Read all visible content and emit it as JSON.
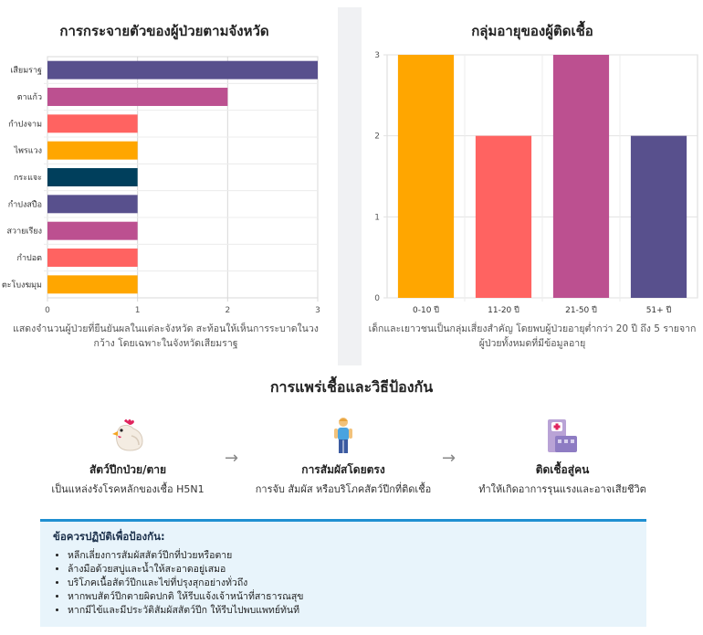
{
  "province_chart": {
    "title": "การกระจายตัวของผู้ป่วยตามจังหวัด",
    "note": "แสดงจำนวนผู้ป่วยที่ยืนยันผลในแต่ละจังหวัด สะท้อนให้เห็นการระบาดในวงกว้าง โดยเฉพาะในจังหวัดเสียมราฐ"
  },
  "age_chart": {
    "title": "กลุ่มอายุของผู้ติดเชื้อ",
    "note": "เด็กและเยาวชนเป็นกลุ่มเสี่ยงสำคัญ โดยพบผู้ป่วยอายุต่ำกว่า 20 ปี ถึง 5 รายจากผู้ป่วยทั้งหมดที่มีข้อมูลอายุ"
  },
  "chart_data": [
    {
      "type": "bar",
      "orientation": "horizontal",
      "title": "การกระจายตัวของผู้ป่วยตามจังหวัด",
      "categories": [
        "เสียมราฐ",
        "ตาแก้ว",
        "กำปงจาม",
        "ไพรแวง",
        "กระแจะ",
        "กำปงสปือ",
        "สวายเรียง",
        "กำปอต",
        "ตะโบงฆมุม"
      ],
      "values": [
        3,
        2,
        1,
        1,
        1,
        1,
        1,
        1,
        1
      ],
      "colors": [
        "#58508d",
        "#bc5090",
        "#ff6361",
        "#ffa600",
        "#003f5c",
        "#58508d",
        "#bc5090",
        "#ff6361",
        "#ffa600"
      ],
      "xlim": [
        0,
        3
      ],
      "xticks": [
        0,
        1,
        2,
        3
      ],
      "grid": true
    },
    {
      "type": "bar",
      "orientation": "vertical",
      "title": "กลุ่มอายุของผู้ติดเชื้อ",
      "categories": [
        "0-10 ปี",
        "11-20 ปี",
        "21-50 ปี",
        "51+ ปี"
      ],
      "values": [
        3,
        2,
        3,
        2
      ],
      "colors": [
        "#ffa600",
        "#ff6361",
        "#bc5090",
        "#58508d"
      ],
      "ylim": [
        0,
        3
      ],
      "yticks": [
        0,
        1,
        2,
        3
      ],
      "grid": true
    }
  ],
  "transmission": {
    "title": "การแพร่เชื้อและวิธีป้องกัน",
    "steps": [
      {
        "icon": "chicken-icon",
        "label": "สัตว์ปีกป่วย/ตาย",
        "desc": "เป็นแหล่งรังโรคหลักของเชื้อ H5N1"
      },
      {
        "icon": "person-icon",
        "label": "การสัมผัสโดยตรง",
        "desc": "การจับ สัมผัส หรือบริโภคสัตว์ปีกที่ติดเชื้อ"
      },
      {
        "icon": "hospital-icon",
        "label": "ติดเชื้อสู่คน",
        "desc": "ทำให้เกิดอาการรุนแรงและอาจเสียชีวิต"
      }
    ],
    "arrow": "→"
  },
  "prevention": {
    "title": "ข้อควรปฏิบัติเพื่อป้องกัน:",
    "items": [
      "หลีกเลี่ยงการสัมผัสสัตว์ปีกที่ป่วยหรือตาย",
      "ล้างมือด้วยสบู่และน้ำให้สะอาดอยู่เสมอ",
      "บริโภคเนื้อสัตว์ปีกและไข่ที่ปรุงสุกอย่างทั่วถึง",
      "หากพบสัตว์ปีกตายผิดปกติ ให้รีบแจ้งเจ้าหน้าที่สาธารณสุข",
      "หากมีไข้และมีประวัติสัมผัสสัตว์ปีก ให้รีบไปพบแพทย์ทันที"
    ]
  }
}
